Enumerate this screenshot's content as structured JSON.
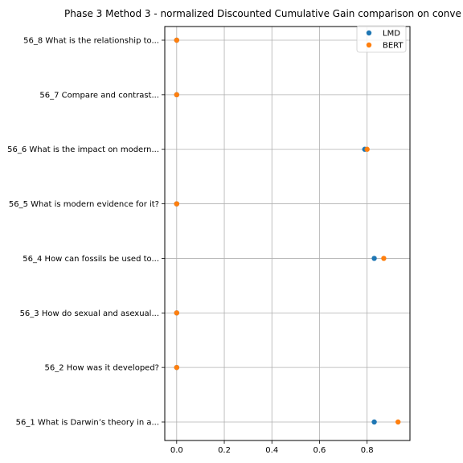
{
  "chart_data": {
    "type": "scatter",
    "title": "Phase 3 Method 3 - normalized Discounted Cumulative Gain comparison on conve",
    "xlabel": "",
    "ylabel": "",
    "xlim": [
      -0.05,
      0.98
    ],
    "xticks": [
      "0.0",
      "0.2",
      "0.4",
      "0.6",
      "0.8"
    ],
    "categories": [
      "56_1 What is Darwin’s theory in a...",
      "56_2 How was it developed?",
      "56_3 How do sexual and asexual...",
      "56_4 How can fossils be used to...",
      "56_5 What is modern evidence for it?",
      "56_6 What is the impact on modern...",
      "56_7 Compare and contrast...",
      "56_8 What is the relationship to..."
    ],
    "series": [
      {
        "name": "LMD",
        "color": "#1f77b4",
        "values": [
          0.83,
          0.0,
          0.0,
          0.83,
          0.0,
          0.79,
          0.0,
          0.0
        ]
      },
      {
        "name": "BERT",
        "color": "#ff7f0e",
        "values": [
          0.93,
          0.0,
          0.0,
          0.87,
          0.0,
          0.8,
          0.0,
          0.0
        ]
      }
    ],
    "grid": true,
    "legend": "top-right"
  }
}
